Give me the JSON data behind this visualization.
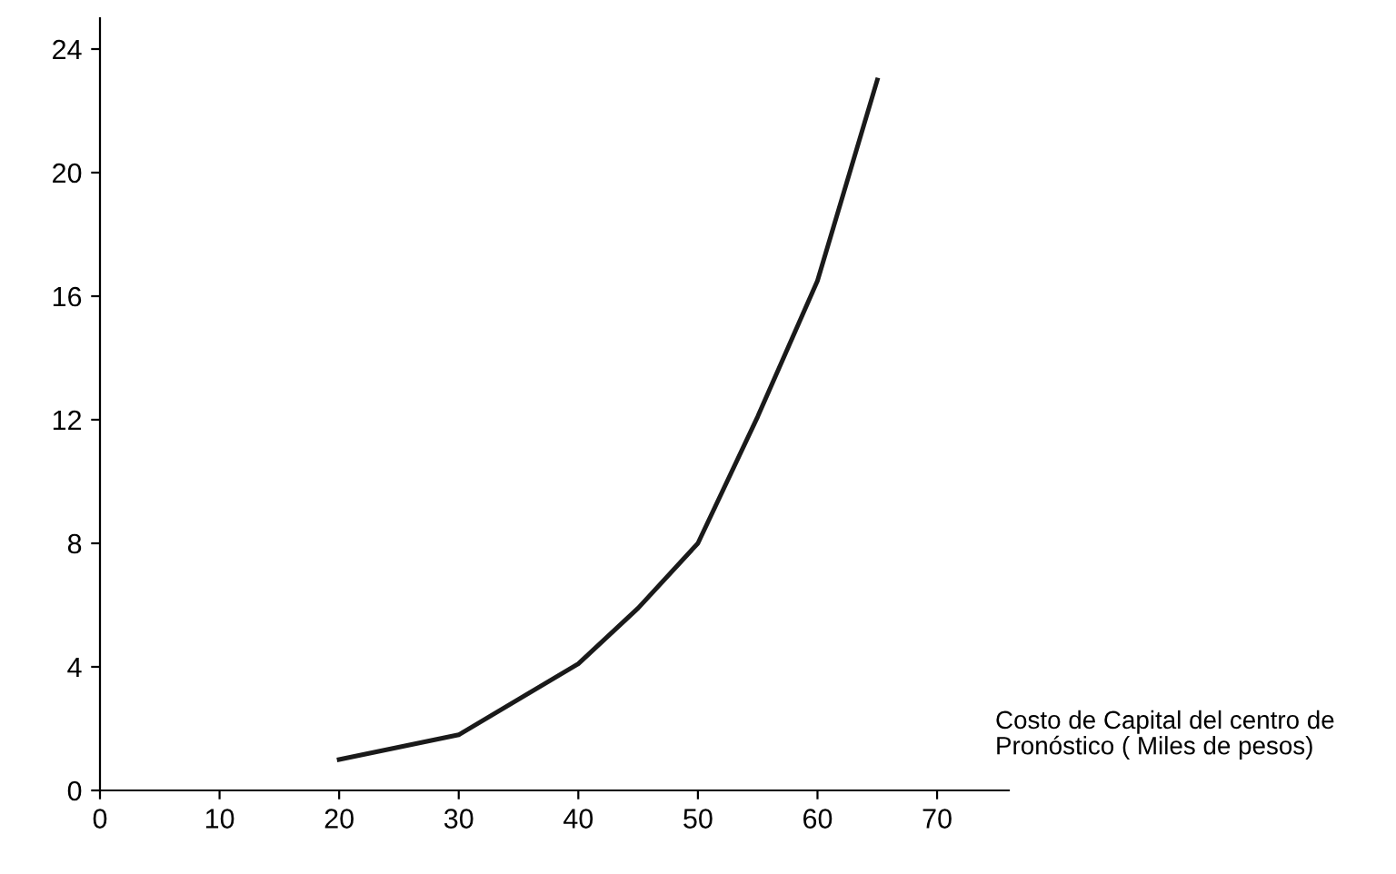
{
  "chart_data": {
    "type": "line",
    "xlabel": "Costo de Capital del centro de\nPronóstico ( Miles de pesos)",
    "x": [
      20,
      30,
      40,
      45,
      50,
      55,
      60,
      65
    ],
    "series": [
      {
        "color": "#1a1a1a",
        "values": [
          1.0,
          1.8,
          4.1,
          5.9,
          8.0,
          12.1,
          16.5,
          23.0
        ]
      }
    ],
    "xlim": [
      0,
      76
    ],
    "ylim": [
      0,
      25
    ],
    "xticks": [
      0,
      10,
      20,
      30,
      40,
      50,
      60,
      70
    ],
    "yticks": [
      0,
      4,
      8,
      12,
      16,
      20,
      24
    ],
    "grid": false,
    "legend": false,
    "marker": "none",
    "line_style": "solid"
  }
}
